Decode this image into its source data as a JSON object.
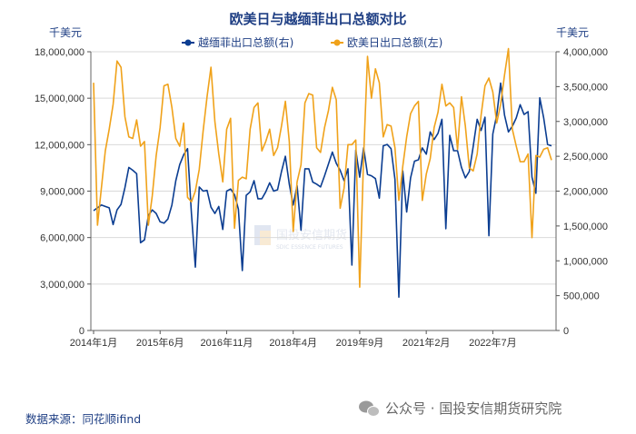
{
  "chart_data": {
    "type": "line",
    "title": "欧美日与越缅菲出口总额对比",
    "left_unit": "千美元",
    "right_unit": "千美元",
    "x_ticks": [
      "2014年1月",
      "2015年6月",
      "2016年11月",
      "2018年4月",
      "2019年9月",
      "2021年2月",
      "2022年7月"
    ],
    "x_tick_index": [
      0,
      17,
      34,
      51,
      68,
      85,
      102
    ],
    "n_points": 118,
    "y_left": {
      "min": 0,
      "max": 18000000,
      "step": 3000000,
      "labels": [
        "0",
        "3,000,000",
        "6,000,000",
        "9,000,000",
        "12,000,000",
        "15,000,000",
        "18,000,000"
      ]
    },
    "y_right": {
      "min": 0,
      "max": 4000000,
      "step": 500000,
      "labels": [
        "0",
        "500,000",
        "1,000,000",
        "1,500,000",
        "2,000,000",
        "2,500,000",
        "3,000,000",
        "3,500,000",
        "4,000,000"
      ]
    },
    "grid": "horizontal",
    "legend_position": "top-center",
    "series": [
      {
        "name": "越缅菲出口总额(右)",
        "axis": "right",
        "color": "#0b3d91",
        "values": [
          1720000,
          1760000,
          1800000,
          1780000,
          1760000,
          1520000,
          1730000,
          1810000,
          2050000,
          2340000,
          2300000,
          2250000,
          1260000,
          1300000,
          1650000,
          1730000,
          1680000,
          1560000,
          1540000,
          1600000,
          1800000,
          2150000,
          2380000,
          2520000,
          2610000,
          1680000,
          910000,
          2060000,
          2000000,
          2010000,
          1770000,
          1680000,
          1780000,
          1450000,
          2000000,
          2030000,
          1950000,
          1740000,
          860000,
          1940000,
          1990000,
          2150000,
          1890000,
          1890000,
          1990000,
          2120000,
          2000000,
          2020000,
          2280000,
          2500000,
          2100000,
          1800000,
          2080000,
          1440000,
          2320000,
          2320000,
          2130000,
          2100000,
          2060000,
          2220000,
          2390000,
          2560000,
          2400000,
          2300000,
          2150000,
          2320000,
          940000,
          2590000,
          2200000,
          2620000,
          2240000,
          2220000,
          2180000,
          1900000,
          2650000,
          2670000,
          2610000,
          2170000,
          480000,
          2290000,
          1700000,
          2190000,
          2430000,
          2450000,
          2620000,
          2530000,
          2850000,
          2740000,
          2830000,
          3030000,
          1460000,
          2800000,
          2580000,
          2580000,
          2340000,
          2190000,
          2280000,
          2640000,
          3030000,
          2870000,
          3060000,
          1360000,
          2820000,
          3090000,
          3550000,
          3090000,
          2850000,
          2930000,
          3050000,
          3240000,
          3100000,
          3140000,
          2200000,
          1970000,
          3340000,
          3050000,
          2670000,
          2650000
        ]
      },
      {
        "name": "欧美日出口总额(左)",
        "axis": "left",
        "color": "#f0a21a",
        "values": [
          16000000,
          6800000,
          9200000,
          11600000,
          13000000,
          14600000,
          17400000,
          17000000,
          13800000,
          12500000,
          12400000,
          13600000,
          11900000,
          12200000,
          6800000,
          8700000,
          11300000,
          13100000,
          15800000,
          15900000,
          14400000,
          12400000,
          11900000,
          13400000,
          8600000,
          8300000,
          9000000,
          10400000,
          12900000,
          15100000,
          17000000,
          13500000,
          11400000,
          9600000,
          13000000,
          13700000,
          6600000,
          9700000,
          9900000,
          9800000,
          13000000,
          14400000,
          14700000,
          11600000,
          12200000,
          13000000,
          11300000,
          11800000,
          13200000,
          14800000,
          12200000,
          6400000,
          9600000,
          10700000,
          14700000,
          15300000,
          15200000,
          11800000,
          11500000,
          13100000,
          14200000,
          15700000,
          14900000,
          7900000,
          9200000,
          12000000,
          12000000,
          12300000,
          2800000,
          11200000,
          17700000,
          15000000,
          16900000,
          16000000,
          12500000,
          13300000,
          13200000,
          11800000,
          8400000,
          10600000,
          12500000,
          14000000,
          14500000,
          14800000,
          8400000,
          10100000,
          11100000,
          13100000,
          14100000,
          15900000,
          14500000,
          14700000,
          14400000,
          11700000,
          15100000,
          13200000,
          10500000,
          10300000,
          11400000,
          13900000,
          15800000,
          16300000,
          15400000,
          13400000,
          14600000,
          16500000,
          18200000,
          13000000,
          11900000,
          10900000,
          10900000,
          11400000,
          6000000,
          11300000,
          11200000,
          11700000,
          11800000,
          11000000
        ]
      }
    ]
  },
  "footer": {
    "source": "数据来源：同花顺ifind",
    "brand": "公众号 · 国投安信期货研究院"
  },
  "watermark": {
    "name": "国投安信期货",
    "sub": "SDIC ESSENCE FUTURES"
  }
}
